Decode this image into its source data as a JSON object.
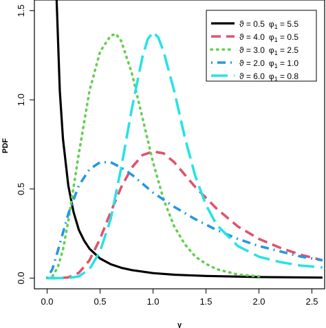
{
  "chart_data": {
    "type": "line",
    "title": "",
    "xlabel": "y",
    "ylabel": "PDF",
    "xlim": [
      -0.12,
      2.62
    ],
    "ylim": [
      -0.06,
      1.56
    ],
    "x_ticks": [
      "0.0",
      "0.5",
      "1.0",
      "1.5",
      "2.0",
      "2.5"
    ],
    "y_ticks": [
      "0.0",
      "0.5",
      "1.0",
      "1.5"
    ],
    "legend_position": "top-right",
    "series": [
      {
        "name": "ϑ = 0.5  φ1 = 5.5",
        "color": "#000000",
        "style": "solid",
        "x": [
          0.09,
          0.12,
          0.15,
          0.2,
          0.25,
          0.3,
          0.35,
          0.4,
          0.5,
          0.6,
          0.7,
          0.8,
          1.0,
          1.2,
          1.5,
          2.0,
          2.6
        ],
        "y": [
          1.56,
          1.05,
          0.78,
          0.52,
          0.37,
          0.27,
          0.21,
          0.165,
          0.11,
          0.078,
          0.058,
          0.045,
          0.028,
          0.019,
          0.012,
          0.006,
          0.003
        ]
      },
      {
        "name": "ϑ = 4.0  φ1 = 0.5",
        "color": "#df536b",
        "style": "dashed",
        "x": [
          0.0,
          0.1,
          0.2,
          0.3,
          0.4,
          0.5,
          0.6,
          0.7,
          0.8,
          0.9,
          1.0,
          1.1,
          1.2,
          1.3,
          1.4,
          1.5,
          1.6,
          1.8,
          2.0,
          2.2,
          2.4,
          2.6
        ],
        "y": [
          0.0,
          0.0,
          0.004,
          0.03,
          0.1,
          0.22,
          0.37,
          0.51,
          0.62,
          0.69,
          0.71,
          0.7,
          0.65,
          0.58,
          0.51,
          0.45,
          0.39,
          0.29,
          0.22,
          0.17,
          0.13,
          0.1
        ]
      },
      {
        "name": "ϑ = 3.0  φ1 = 2.5",
        "color": "#61d04f",
        "style": "dotted",
        "x": [
          0.0,
          0.05,
          0.1,
          0.15,
          0.2,
          0.3,
          0.4,
          0.5,
          0.6,
          0.65,
          0.7,
          0.8,
          0.9,
          1.0,
          1.1,
          1.2,
          1.3,
          1.4,
          1.5,
          1.6,
          1.8,
          2.0
        ],
        "y": [
          0.0,
          0.01,
          0.06,
          0.16,
          0.32,
          0.7,
          1.05,
          1.27,
          1.36,
          1.37,
          1.33,
          1.15,
          0.9,
          0.65,
          0.44,
          0.29,
          0.19,
          0.12,
          0.08,
          0.05,
          0.02,
          0.01
        ]
      },
      {
        "name": "ϑ = 2.0  φ1 = 1.0",
        "color": "#2297e6",
        "style": "dotdash",
        "x": [
          0.0,
          0.05,
          0.1,
          0.2,
          0.3,
          0.4,
          0.5,
          0.6,
          0.7,
          0.8,
          0.9,
          1.0,
          1.2,
          1.4,
          1.6,
          1.8,
          2.0,
          2.2,
          2.4,
          2.6
        ],
        "y": [
          0.0,
          0.05,
          0.15,
          0.36,
          0.52,
          0.61,
          0.65,
          0.65,
          0.62,
          0.58,
          0.53,
          0.48,
          0.4,
          0.33,
          0.27,
          0.22,
          0.18,
          0.15,
          0.12,
          0.1
        ]
      },
      {
        "name": "ϑ = 6.0  φ1 = 0.8",
        "color": "#28e2e5",
        "style": "longdash",
        "x": [
          0.0,
          0.2,
          0.3,
          0.4,
          0.5,
          0.6,
          0.7,
          0.8,
          0.9,
          0.95,
          1.0,
          1.05,
          1.1,
          1.2,
          1.3,
          1.4,
          1.5,
          1.6,
          1.8,
          2.0,
          2.2,
          2.4,
          2.6
        ],
        "y": [
          0.0,
          0.0,
          0.01,
          0.05,
          0.15,
          0.33,
          0.62,
          0.95,
          1.24,
          1.34,
          1.38,
          1.35,
          1.27,
          1.05,
          0.79,
          0.57,
          0.41,
          0.3,
          0.18,
          0.12,
          0.09,
          0.07,
          0.06
        ]
      }
    ]
  },
  "legend": {
    "entries": [
      {
        "theta": "ϑ = 0.5",
        "phi_symbol": "φ",
        "phi_sub": "1",
        "phi_value": " = 5.5"
      },
      {
        "theta": "ϑ = 4.0",
        "phi_symbol": "φ",
        "phi_sub": "1",
        "phi_value": " = 0.5"
      },
      {
        "theta": "ϑ = 3.0",
        "phi_symbol": "φ",
        "phi_sub": "1",
        "phi_value": " = 2.5"
      },
      {
        "theta": "ϑ = 2.0",
        "phi_symbol": "φ",
        "phi_sub": "1",
        "phi_value": " = 1.0"
      },
      {
        "theta": "ϑ = 6.0",
        "phi_symbol": "φ",
        "phi_sub": "1",
        "phi_value": " = 0.8"
      }
    ]
  }
}
